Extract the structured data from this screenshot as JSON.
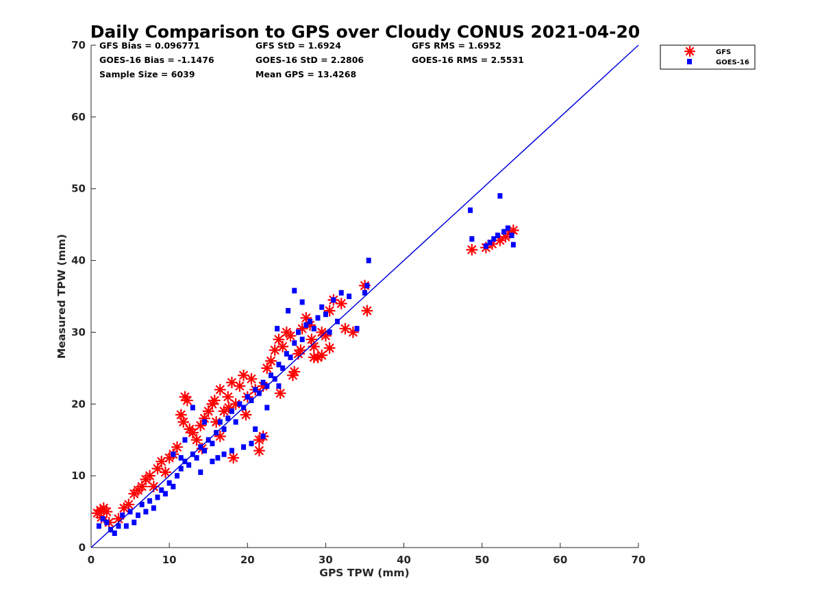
{
  "chart_data": {
    "type": "scatter",
    "title": "Daily Comparison to GPS over Cloudy CONUS 2021-04-20",
    "xlabel": "GPS TPW (mm)",
    "ylabel": "Measured TPW (mm)",
    "xlim": [
      0,
      70
    ],
    "ylim": [
      0,
      70
    ],
    "xticks": [
      0,
      10,
      20,
      30,
      40,
      50,
      60,
      70
    ],
    "yticks": [
      0,
      10,
      20,
      30,
      40,
      50,
      60,
      70
    ],
    "grid": false,
    "legend_position": "outside-top-right",
    "reference_line": {
      "x": [
        0,
        70
      ],
      "y": [
        0,
        70
      ],
      "color": "#0000dd"
    },
    "stats": [
      "GFS Bias = 0.096771",
      "GFS StD = 1.6924",
      "GFS RMS = 1.6952",
      "GOES-16 Bias = -1.1476",
      "GOES-16 StD = 2.2806",
      "GOES-16 RMS = 2.5531",
      "Sample Size = 6039",
      "Mean GPS = 13.4268"
    ],
    "series": [
      {
        "name": "GFS",
        "marker": "asterisk",
        "color": "#ff0000",
        "x": [
          0.8,
          1.2,
          1.6,
          2.0,
          1.3,
          2.3,
          3.5,
          4.2,
          4.8,
          5.5,
          6.0,
          6.5,
          7.0,
          7.5,
          8.0,
          8.5,
          9.0,
          9.5,
          10.0,
          10.5,
          11.0,
          11.5,
          12.0,
          12.3,
          11.8,
          13.0,
          13.5,
          14.0,
          14.5,
          15.0,
          15.5,
          16.0,
          16.5,
          17.0,
          17.5,
          18.0,
          18.5,
          19.0,
          19.5,
          20.0,
          20.5,
          21.0,
          21.5,
          22.0,
          22.5,
          23.0,
          23.5,
          24.0,
          24.5,
          25.0,
          25.5,
          26.0,
          26.5,
          27.0,
          27.5,
          28.0,
          28.5,
          29.0,
          29.5,
          30.0,
          30.5,
          31.0,
          32.0,
          32.5,
          33.5,
          35.0,
          35.3,
          48.7,
          50.5,
          51.3,
          52.3,
          53.0,
          53.5,
          54.0,
          16.5,
          18.2,
          21.5,
          22.0,
          25.8,
          28.5,
          29.5,
          14.2,
          15.8,
          19.8,
          24.2,
          26.8,
          28.2,
          30.5,
          12.6,
          17.6
        ],
        "y": [
          4.8,
          5.2,
          5.5,
          5.0,
          4.2,
          3.5,
          4.0,
          5.5,
          6.0,
          7.5,
          8.0,
          8.5,
          9.5,
          10.0,
          8.5,
          11.0,
          12.0,
          10.5,
          12.5,
          13.0,
          14.0,
          18.5,
          21.0,
          20.5,
          17.5,
          16.0,
          15.0,
          17.0,
          18.0,
          19.0,
          20.0,
          17.5,
          22.0,
          19.0,
          21.0,
          23.0,
          20.0,
          22.5,
          24.0,
          21.0,
          23.5,
          22.0,
          15.0,
          15.5,
          25.0,
          26.0,
          27.5,
          29.0,
          28.0,
          30.0,
          29.5,
          24.5,
          27.0,
          30.5,
          32.0,
          31.0,
          26.5,
          26.5,
          30.0,
          29.5,
          33.0,
          34.5,
          34.0,
          30.5,
          30.0,
          36.5,
          33.0,
          41.5,
          41.8,
          42.3,
          42.8,
          43.3,
          43.8,
          44.2,
          15.5,
          12.5,
          13.5,
          22.5,
          24.0,
          28.0,
          26.8,
          13.8,
          20.5,
          18.5,
          21.5,
          27.5,
          29.0,
          27.8,
          16.5,
          19.5
        ]
      },
      {
        "name": "GOES-16",
        "marker": "square",
        "color": "#0000ff",
        "x": [
          1.0,
          1.5,
          2.0,
          2.5,
          3.0,
          3.5,
          4.0,
          4.5,
          5.0,
          5.5,
          6.0,
          6.5,
          7.0,
          7.5,
          8.0,
          8.5,
          9.0,
          9.5,
          10.0,
          10.5,
          11.0,
          11.5,
          12.0,
          12.5,
          13.0,
          13.5,
          14.0,
          14.5,
          15.0,
          15.5,
          16.0,
          16.5,
          17.0,
          17.5,
          18.0,
          18.5,
          19.0,
          19.5,
          20.0,
          20.5,
          21.0,
          21.5,
          22.0,
          22.5,
          23.0,
          23.5,
          24.0,
          24.5,
          25.0,
          25.5,
          26.0,
          26.5,
          27.0,
          27.5,
          28.0,
          28.5,
          29.0,
          29.5,
          30.0,
          30.5,
          31.0,
          31.5,
          32.0,
          33.0,
          34.0,
          35.0,
          35.3,
          35.5,
          26.0,
          27.0,
          25.2,
          23.8,
          48.5,
          48.7,
          50.5,
          51.0,
          51.5,
          52.0,
          52.3,
          52.8,
          53.3,
          53.8,
          54.0,
          16.2,
          18.0,
          19.5,
          21.0,
          22.5,
          24.0,
          13.0,
          14.0,
          15.5,
          17.0,
          20.5,
          22.0,
          10.5,
          11.5,
          12.0,
          14.5
        ],
        "y": [
          3.0,
          4.0,
          3.5,
          2.5,
          2.0,
          3.0,
          4.5,
          3.0,
          5.0,
          3.5,
          4.5,
          6.0,
          5.0,
          6.5,
          5.5,
          7.0,
          8.0,
          7.5,
          9.0,
          8.5,
          10.0,
          11.0,
          12.0,
          11.5,
          13.0,
          12.5,
          14.0,
          13.5,
          15.0,
          14.5,
          16.0,
          17.5,
          16.5,
          18.0,
          19.0,
          17.5,
          20.0,
          19.5,
          21.0,
          20.5,
          22.0,
          21.5,
          23.0,
          22.5,
          24.0,
          23.5,
          25.5,
          25.0,
          27.0,
          26.5,
          28.5,
          30.0,
          29.0,
          31.0,
          31.5,
          30.5,
          32.0,
          33.5,
          32.5,
          30.0,
          34.5,
          31.5,
          35.5,
          35.0,
          30.5,
          35.5,
          36.5,
          40.0,
          35.8,
          34.2,
          33.0,
          30.5,
          47.0,
          43.0,
          42.0,
          42.5,
          43.0,
          43.5,
          49.0,
          44.0,
          44.5,
          43.5,
          42.2,
          12.5,
          13.5,
          14.0,
          16.5,
          19.5,
          22.5,
          19.5,
          10.5,
          12.0,
          13.0,
          14.5,
          15.5,
          13.0,
          12.5,
          15.0,
          17.5
        ]
      }
    ]
  }
}
